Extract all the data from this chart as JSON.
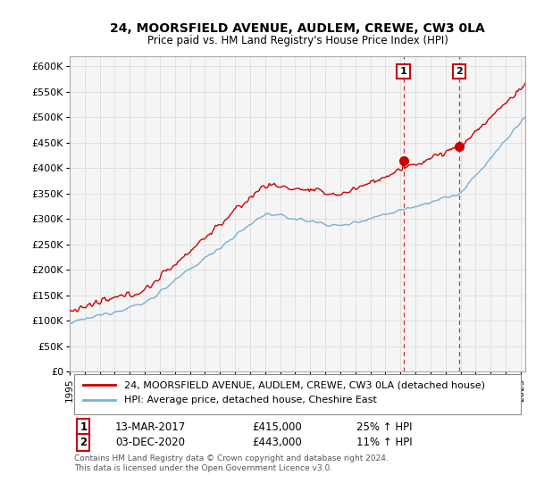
{
  "title": "24, MOORSFIELD AVENUE, AUDLEM, CREWE, CW3 0LA",
  "subtitle": "Price paid vs. HM Land Registry's House Price Index (HPI)",
  "ylim": [
    0,
    620000
  ],
  "yticks": [
    0,
    50000,
    100000,
    150000,
    200000,
    250000,
    300000,
    350000,
    400000,
    450000,
    500000,
    550000,
    600000
  ],
  "ytick_labels": [
    "£0",
    "£50K",
    "£100K",
    "£150K",
    "£200K",
    "£250K",
    "£300K",
    "£350K",
    "£400K",
    "£450K",
    "£500K",
    "£550K",
    "£600K"
  ],
  "background_color": "#f5f5f5",
  "grid_color": "#dddddd",
  "red_color": "#cc0000",
  "blue_color": "#7bafd4",
  "legend_label_red": "24, MOORSFIELD AVENUE, AUDLEM, CREWE, CW3 0LA (detached house)",
  "legend_label_blue": "HPI: Average price, detached house, Cheshire East",
  "ann1_label": "1",
  "ann1_date": "13-MAR-2017",
  "ann1_price": "£415,000",
  "ann1_hpi": "25% ↑ HPI",
  "ann1_x": 2017.2,
  "ann1_y": 415000,
  "ann2_label": "2",
  "ann2_date": "03-DEC-2020",
  "ann2_price": "£443,000",
  "ann2_hpi": "11% ↑ HPI",
  "ann2_x": 2020.92,
  "ann2_y": 443000,
  "footer": "Contains HM Land Registry data © Crown copyright and database right 2024.\nThis data is licensed under the Open Government Licence v3.0.",
  "xlim_left": 1995.0,
  "xlim_right": 2025.3
}
